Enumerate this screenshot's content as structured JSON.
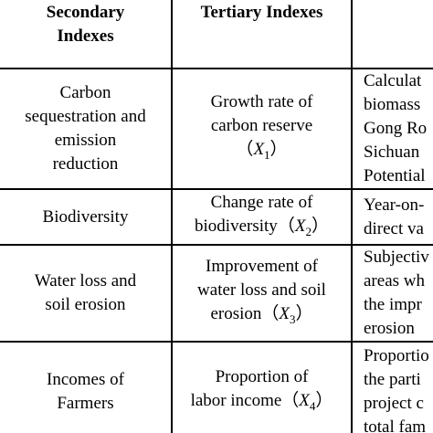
{
  "table": {
    "header": [
      "Secondary Indexes",
      "Tertiary Indexes",
      ""
    ],
    "header_lines": [
      [
        "Secondary",
        "Indexes"
      ],
      [
        "Tertiary Indexes"
      ]
    ],
    "rows": [
      {
        "secondary": [
          "Carbon",
          "sequestration and",
          "emission",
          "reduction"
        ],
        "tertiary": [
          "Growth rate of",
          "carbon reserve",
          {
            "open": "（",
            "var": "X",
            "sub": "1",
            "close": "）"
          }
        ],
        "description": [
          "Calculat",
          "biomass",
          "Gong Ro",
          "Sichuan",
          "Potential"
        ]
      },
      {
        "secondary": [
          "Biodiversity"
        ],
        "tertiary": [
          "Change rate of",
          {
            "text": "biodiversity",
            "open": "（",
            "var": "X",
            "sub": "2",
            "close": "）"
          }
        ],
        "description": [
          "Year-on-",
          "direct va"
        ]
      },
      {
        "secondary": [
          "Water loss and",
          "soil erosion"
        ],
        "tertiary": [
          "Improvement of",
          "water loss and soil",
          {
            "text": "erosion",
            "open": "（",
            "var": "X",
            "sub": "3",
            "close": "）"
          }
        ],
        "description": [
          "Subjectiv",
          "areas wh",
          "the impr",
          "erosion"
        ]
      },
      {
        "secondary": [
          "Incomes of",
          "Farmers"
        ],
        "tertiary": [
          "Proportion of",
          {
            "text": "labor income",
            "open": "（",
            "var": "X",
            "sub": "4",
            "close": "）"
          }
        ],
        "description": [
          "Proportio",
          "the parti",
          "project c",
          "total fam"
        ]
      }
    ]
  }
}
